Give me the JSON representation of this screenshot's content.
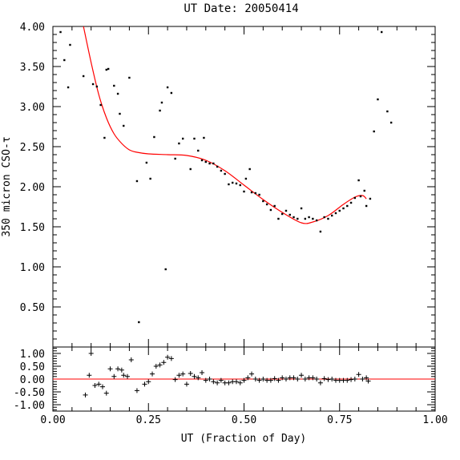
{
  "chart_data": {
    "type": "scatter",
    "title": "UT Date: 20050414",
    "xlabel": "UT (Fraction of Day)",
    "ylabel": "350 micron CSO-τ",
    "xlim": [
      0.0,
      1.0
    ],
    "ylim": [
      0.0,
      4.0
    ],
    "resid_ylim": [
      -1.25,
      1.25
    ],
    "x_ticks": [
      "0.00",
      "0.25",
      "0.50",
      "0.75",
      "1.00"
    ],
    "y_ticks": [
      "0.50",
      "1.00",
      "1.50",
      "2.00",
      "2.50",
      "3.00",
      "3.50",
      "4.00"
    ],
    "resid_ticks": [
      "-1.00",
      "-0.50",
      "0.00",
      "0.50",
      "1.00"
    ],
    "colors": {
      "fit": "#ff0000",
      "points": "#000000",
      "zero_line": "#ff0000"
    },
    "points": [
      [
        0.015,
        4.07
      ],
      [
        0.02,
        3.93
      ],
      [
        0.03,
        3.58
      ],
      [
        0.04,
        3.24
      ],
      [
        0.045,
        3.77
      ],
      [
        0.08,
        3.38
      ],
      [
        0.09,
        4.02
      ],
      [
        0.105,
        3.28
      ],
      [
        0.115,
        3.25
      ],
      [
        0.125,
        3.02
      ],
      [
        0.135,
        2.61
      ],
      [
        0.14,
        3.46
      ],
      [
        0.145,
        3.47
      ],
      [
        0.16,
        3.26
      ],
      [
        0.17,
        3.16
      ],
      [
        0.175,
        2.91
      ],
      [
        0.185,
        2.76
      ],
      [
        0.2,
        3.36
      ],
      [
        0.22,
        2.07
      ],
      [
        0.225,
        0.31
      ],
      [
        0.245,
        2.3
      ],
      [
        0.255,
        2.1
      ],
      [
        0.265,
        2.62
      ],
      [
        0.28,
        2.95
      ],
      [
        0.285,
        3.05
      ],
      [
        0.295,
        0.97
      ],
      [
        0.3,
        3.24
      ],
      [
        0.31,
        3.17
      ],
      [
        0.32,
        2.35
      ],
      [
        0.33,
        2.54
      ],
      [
        0.34,
        2.6
      ],
      [
        0.36,
        2.22
      ],
      [
        0.37,
        2.6
      ],
      [
        0.38,
        2.45
      ],
      [
        0.39,
        2.33
      ],
      [
        0.395,
        2.61
      ],
      [
        0.4,
        2.31
      ],
      [
        0.41,
        2.29
      ],
      [
        0.42,
        2.29
      ],
      [
        0.43,
        2.25
      ],
      [
        0.44,
        2.2
      ],
      [
        0.45,
        2.16
      ],
      [
        0.46,
        2.03
      ],
      [
        0.47,
        2.05
      ],
      [
        0.48,
        2.04
      ],
      [
        0.49,
        2.02
      ],
      [
        0.5,
        1.94
      ],
      [
        0.505,
        2.1
      ],
      [
        0.515,
        2.22
      ],
      [
        0.52,
        1.93
      ],
      [
        0.53,
        1.92
      ],
      [
        0.54,
        1.9
      ],
      [
        0.55,
        1.82
      ],
      [
        0.56,
        1.78
      ],
      [
        0.57,
        1.71
      ],
      [
        0.58,
        1.76
      ],
      [
        0.59,
        1.6
      ],
      [
        0.6,
        1.66
      ],
      [
        0.61,
        1.7
      ],
      [
        0.62,
        1.65
      ],
      [
        0.63,
        1.62
      ],
      [
        0.64,
        1.6
      ],
      [
        0.65,
        1.73
      ],
      [
        0.66,
        1.6
      ],
      [
        0.67,
        1.62
      ],
      [
        0.68,
        1.6
      ],
      [
        0.69,
        1.58
      ],
      [
        0.7,
        1.44
      ],
      [
        0.71,
        1.62
      ],
      [
        0.72,
        1.6
      ],
      [
        0.73,
        1.64
      ],
      [
        0.74,
        1.67
      ],
      [
        0.75,
        1.7
      ],
      [
        0.76,
        1.73
      ],
      [
        0.77,
        1.76
      ],
      [
        0.78,
        1.8
      ],
      [
        0.79,
        1.86
      ],
      [
        0.8,
        2.08
      ],
      [
        0.805,
        1.88
      ],
      [
        0.815,
        1.95
      ],
      [
        0.82,
        1.76
      ],
      [
        0.83,
        1.85
      ],
      [
        0.84,
        2.69
      ],
      [
        0.85,
        3.09
      ],
      [
        0.86,
        3.93
      ],
      [
        0.875,
        2.94
      ],
      [
        0.885,
        2.8
      ]
    ],
    "fit_x_range": [
      0.075,
      0.82
    ],
    "fit_knots": [
      [
        0.08,
        4.0
      ],
      [
        0.1,
        3.55
      ],
      [
        0.12,
        3.15
      ],
      [
        0.14,
        2.86
      ],
      [
        0.16,
        2.66
      ],
      [
        0.18,
        2.54
      ],
      [
        0.2,
        2.46
      ],
      [
        0.22,
        2.43
      ],
      [
        0.25,
        2.41
      ],
      [
        0.3,
        2.4
      ],
      [
        0.35,
        2.39
      ],
      [
        0.4,
        2.33
      ],
      [
        0.45,
        2.2
      ],
      [
        0.5,
        2.02
      ],
      [
        0.55,
        1.84
      ],
      [
        0.6,
        1.68
      ],
      [
        0.65,
        1.55
      ],
      [
        0.68,
        1.56
      ],
      [
        0.72,
        1.64
      ],
      [
        0.76,
        1.78
      ],
      [
        0.79,
        1.87
      ],
      [
        0.81,
        1.89
      ],
      [
        0.82,
        1.85
      ]
    ],
    "residuals": [
      [
        0.085,
        -0.62
      ],
      [
        0.095,
        0.15
      ],
      [
        0.1,
        1.0
      ],
      [
        0.11,
        -0.25
      ],
      [
        0.12,
        -0.2
      ],
      [
        0.13,
        -0.3
      ],
      [
        0.14,
        -0.55
      ],
      [
        0.15,
        0.4
      ],
      [
        0.16,
        0.1
      ],
      [
        0.17,
        0.4
      ],
      [
        0.18,
        0.35
      ],
      [
        0.185,
        0.15
      ],
      [
        0.195,
        0.1
      ],
      [
        0.205,
        0.75
      ],
      [
        0.22,
        -0.45
      ],
      [
        0.24,
        -0.2
      ],
      [
        0.25,
        -0.1
      ],
      [
        0.26,
        0.2
      ],
      [
        0.27,
        0.5
      ],
      [
        0.28,
        0.55
      ],
      [
        0.29,
        0.65
      ],
      [
        0.3,
        0.85
      ],
      [
        0.31,
        0.8
      ],
      [
        0.32,
        -0.02
      ],
      [
        0.33,
        0.15
      ],
      [
        0.34,
        0.2
      ],
      [
        0.35,
        -0.2
      ],
      [
        0.36,
        0.22
      ],
      [
        0.37,
        0.1
      ],
      [
        0.38,
        0.05
      ],
      [
        0.39,
        0.25
      ],
      [
        0.4,
        -0.05
      ],
      [
        0.41,
        0.0
      ],
      [
        0.42,
        -0.1
      ],
      [
        0.43,
        -0.15
      ],
      [
        0.44,
        -0.05
      ],
      [
        0.45,
        -0.15
      ],
      [
        0.46,
        -0.15
      ],
      [
        0.47,
        -0.1
      ],
      [
        0.48,
        -0.1
      ],
      [
        0.49,
        -0.15
      ],
      [
        0.5,
        -0.05
      ],
      [
        0.51,
        0.05
      ],
      [
        0.52,
        0.2
      ],
      [
        0.53,
        0.0
      ],
      [
        0.54,
        -0.05
      ],
      [
        0.55,
        0.0
      ],
      [
        0.56,
        -0.05
      ],
      [
        0.57,
        -0.05
      ],
      [
        0.58,
        0.02
      ],
      [
        0.59,
        -0.05
      ],
      [
        0.6,
        0.05
      ],
      [
        0.61,
        0.0
      ],
      [
        0.62,
        0.05
      ],
      [
        0.63,
        0.05
      ],
      [
        0.64,
        0.0
      ],
      [
        0.65,
        0.15
      ],
      [
        0.66,
        0.0
      ],
      [
        0.67,
        0.05
      ],
      [
        0.68,
        0.05
      ],
      [
        0.69,
        0.0
      ],
      [
        0.7,
        -0.15
      ],
      [
        0.71,
        0.02
      ],
      [
        0.72,
        -0.02
      ],
      [
        0.73,
        0.0
      ],
      [
        0.74,
        -0.05
      ],
      [
        0.75,
        -0.05
      ],
      [
        0.76,
        -0.05
      ],
      [
        0.77,
        -0.05
      ],
      [
        0.78,
        -0.02
      ],
      [
        0.79,
        0.0
      ],
      [
        0.8,
        0.18
      ],
      [
        0.81,
        0.0
      ],
      [
        0.82,
        0.05
      ],
      [
        0.825,
        -0.08
      ]
    ]
  }
}
